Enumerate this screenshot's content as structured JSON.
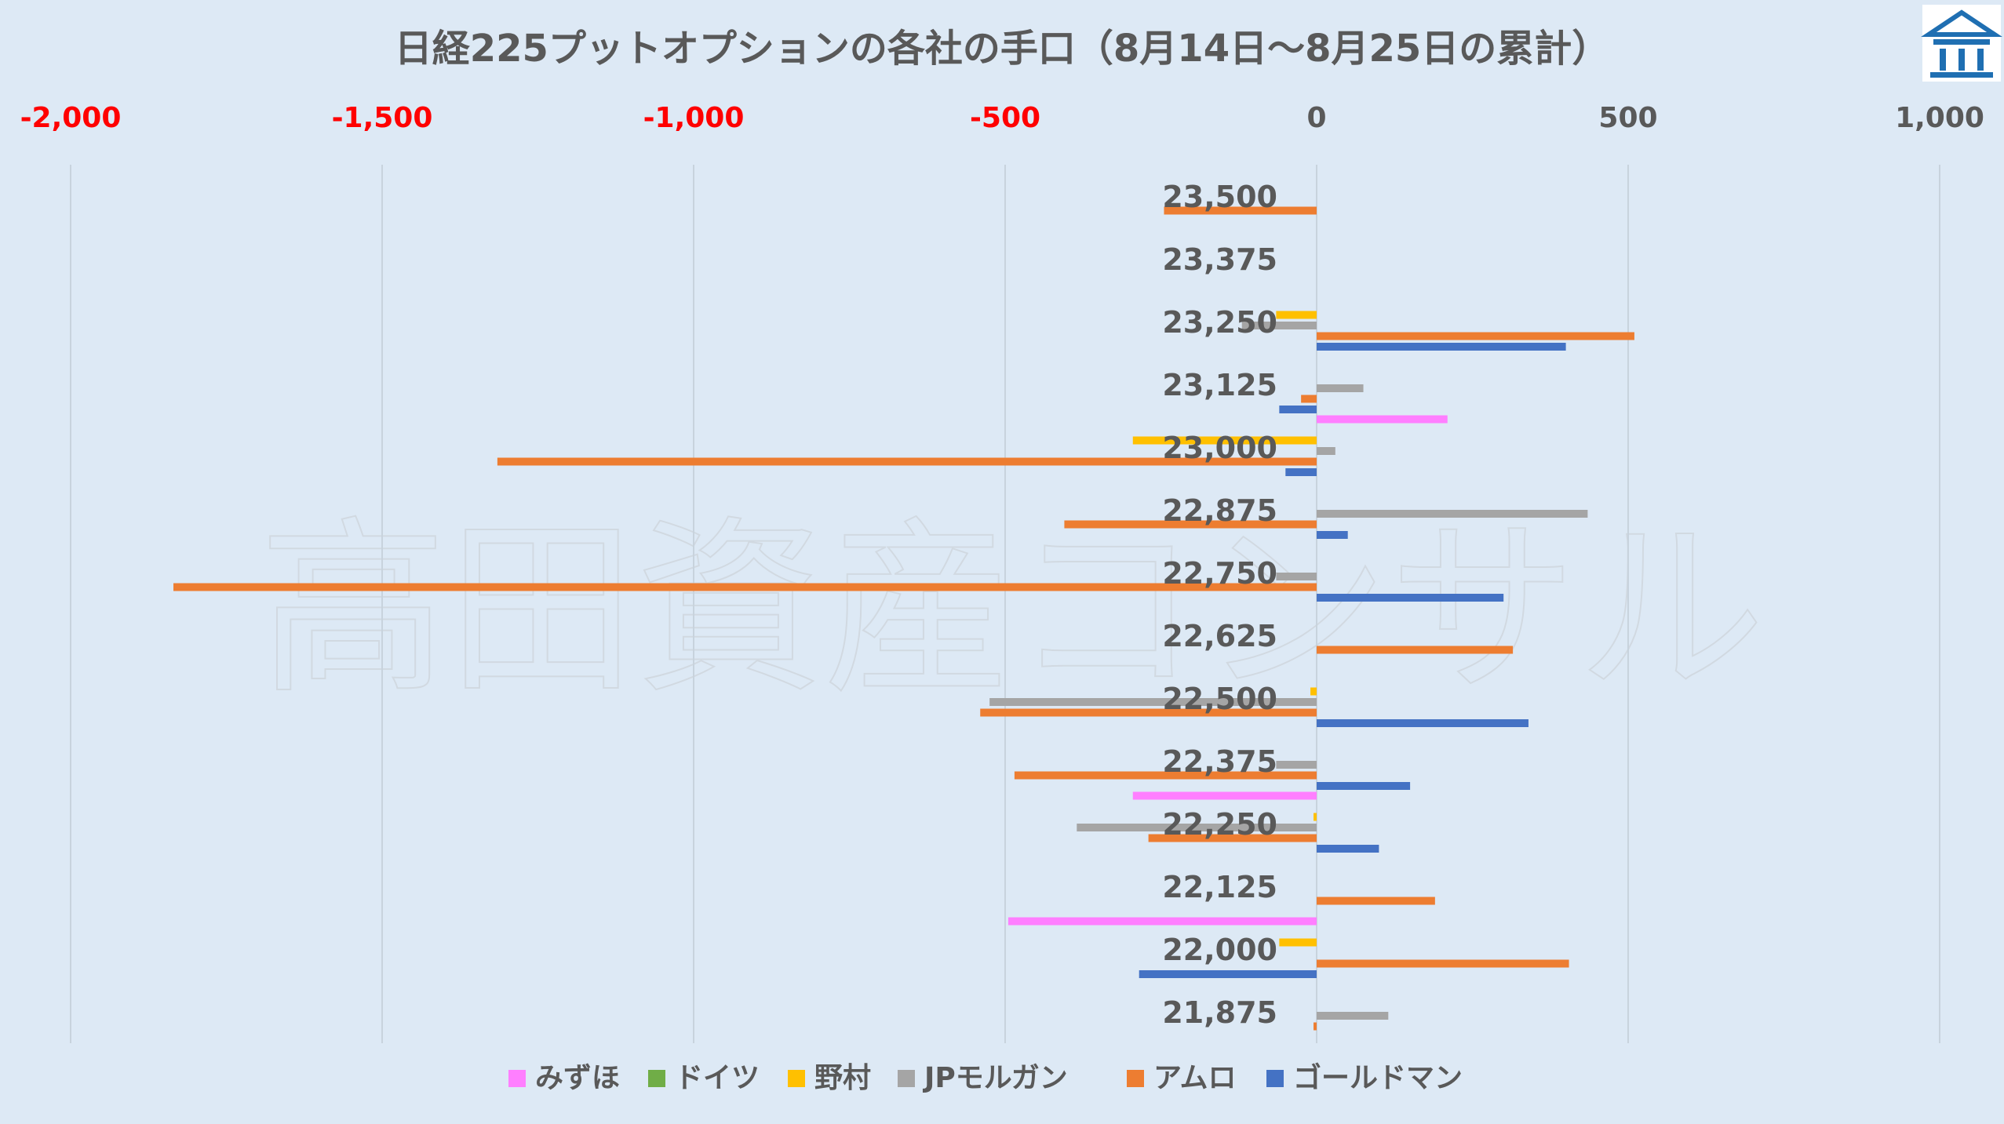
{
  "chart_data": {
    "type": "bar",
    "orientation": "horizontal",
    "title": "日経225プットオプションの各社の手口（8月14日～8月25日の累計）",
    "xlabel": "",
    "ylabel": "",
    "xlim": [
      -2000,
      1000
    ],
    "x_ticks": [
      {
        "value": -2000,
        "label": "-2,000"
      },
      {
        "value": -1500,
        "label": "-1,500"
      },
      {
        "value": -1000,
        "label": "-1,000"
      },
      {
        "value": -500,
        "label": "-500"
      },
      {
        "value": 0,
        "label": "0"
      },
      {
        "value": 500,
        "label": "500"
      },
      {
        "value": 1000,
        "label": "1,000"
      }
    ],
    "negative_tick_color": "#ff0000",
    "positive_tick_color": "#595959",
    "grid": true,
    "legend_position": "bottom",
    "categories": [
      "23,500",
      "23,375",
      "23,250",
      "23,125",
      "23,000",
      "22,875",
      "22,750",
      "22,625",
      "22,500",
      "22,375",
      "22,250",
      "22,125",
      "22,000",
      "21,875"
    ],
    "series": [
      {
        "name": "みずほ",
        "color": "#ff7fff",
        "values": [
          0,
          0,
          0,
          0,
          210,
          0,
          0,
          0,
          0,
          0,
          -295,
          0,
          -495,
          0
        ]
      },
      {
        "name": "ドイツ",
        "color": "#70ad47",
        "values": [
          0,
          0,
          0,
          0,
          0,
          0,
          0,
          0,
          0,
          0,
          0,
          0,
          0,
          0
        ]
      },
      {
        "name": "野村",
        "color": "#ffc000",
        "values": [
          0,
          0,
          -65,
          0,
          -295,
          0,
          0,
          0,
          -10,
          0,
          -5,
          0,
          -60,
          0
        ]
      },
      {
        "name": "JPモルガン",
        "color": "#a5a5a5",
        "values": [
          0,
          0,
          -120,
          75,
          30,
          435,
          -65,
          0,
          -525,
          -65,
          -385,
          0,
          0,
          115
        ]
      },
      {
        "name": "アムロ",
        "color": "#ed7d31",
        "values": [
          -245,
          0,
          510,
          -25,
          -1315,
          -405,
          -1835,
          315,
          -540,
          -485,
          -270,
          190,
          405,
          -5
        ]
      },
      {
        "name": "ゴールドマン",
        "color": "#4472c4",
        "values": [
          0,
          0,
          400,
          -60,
          -50,
          50,
          300,
          0,
          340,
          150,
          100,
          0,
          -285,
          0
        ]
      }
    ]
  },
  "watermark": "高田資産コンサル",
  "logo": {
    "icon": "bank-building-icon",
    "color": "#1f6fb2"
  }
}
